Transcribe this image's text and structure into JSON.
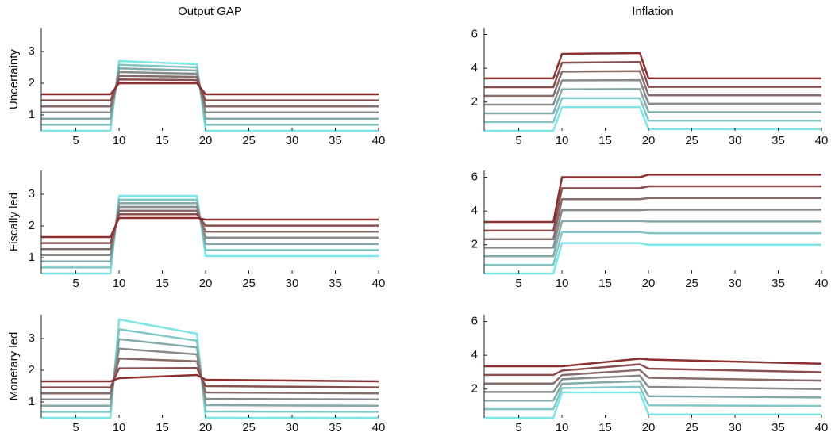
{
  "chart_data": [
    {
      "type": "line",
      "title": "Output GAP",
      "ylabel": "Uncertainty",
      "x": [
        1,
        9,
        10,
        19,
        20,
        40
      ],
      "xlim": [
        1,
        40
      ],
      "xticks": [
        5,
        10,
        15,
        20,
        25,
        30,
        35,
        40
      ],
      "ylim": [
        0.5,
        3.75
      ],
      "yticks": [
        1,
        2,
        3
      ],
      "series": [
        {
          "color": "#7fe5e5",
          "values": [
            0.5,
            0.5,
            2.7,
            2.6,
            0.5,
            0.5
          ]
        },
        {
          "color": "#81c7c7",
          "values": [
            0.69,
            0.69,
            2.58,
            2.5,
            0.69,
            0.69
          ]
        },
        {
          "color": "#83a9a9",
          "values": [
            0.88,
            0.88,
            2.47,
            2.4,
            0.88,
            0.88
          ]
        },
        {
          "color": "#858b8b",
          "values": [
            1.08,
            1.08,
            2.35,
            2.3,
            1.08,
            1.08
          ]
        },
        {
          "color": "#876c6c",
          "values": [
            1.27,
            1.27,
            2.23,
            2.2,
            1.27,
            1.27
          ]
        },
        {
          "color": "#894e4e",
          "values": [
            1.46,
            1.46,
            2.12,
            2.1,
            1.46,
            1.46
          ]
        },
        {
          "color": "#8b3030",
          "values": [
            1.65,
            1.65,
            2.0,
            2.0,
            1.65,
            1.65
          ]
        }
      ]
    },
    {
      "type": "line",
      "title": "Inflation",
      "x": [
        1,
        9,
        10,
        19,
        20,
        40
      ],
      "xlim": [
        1,
        40
      ],
      "xticks": [
        5,
        10,
        15,
        20,
        25,
        30,
        35,
        40
      ],
      "ylim": [
        0.3,
        6.4
      ],
      "yticks": [
        2,
        4,
        6
      ],
      "series": [
        {
          "color": "#7fe5e5",
          "values": [
            0.3,
            0.3,
            1.7,
            1.7,
            0.4,
            0.4
          ]
        },
        {
          "color": "#81c7c7",
          "values": [
            0.82,
            0.82,
            2.23,
            2.23,
            0.9,
            0.9
          ]
        },
        {
          "color": "#83a9a9",
          "values": [
            1.33,
            1.33,
            2.75,
            2.77,
            1.4,
            1.4
          ]
        },
        {
          "color": "#858b8b",
          "values": [
            1.85,
            1.85,
            3.28,
            3.3,
            1.9,
            1.9
          ]
        },
        {
          "color": "#876c6c",
          "values": [
            2.37,
            2.37,
            3.8,
            3.83,
            2.4,
            2.4
          ]
        },
        {
          "color": "#894e4e",
          "values": [
            2.88,
            2.88,
            4.33,
            4.37,
            2.9,
            2.9
          ]
        },
        {
          "color": "#8b3030",
          "values": [
            3.4,
            3.4,
            4.85,
            4.9,
            3.4,
            3.4
          ]
        }
      ]
    },
    {
      "type": "line",
      "ylabel": "Fiscally led",
      "x": [
        1,
        9,
        10,
        19,
        20,
        40
      ],
      "xlim": [
        1,
        40
      ],
      "xticks": [
        5,
        10,
        15,
        20,
        25,
        30,
        35,
        40
      ],
      "ylim": [
        0.5,
        3.75
      ],
      "yticks": [
        1,
        2,
        3
      ],
      "series": [
        {
          "color": "#7fe5e5",
          "values": [
            0.5,
            0.5,
            2.95,
            2.95,
            1.05,
            1.05
          ]
        },
        {
          "color": "#81c7c7",
          "values": [
            0.69,
            0.69,
            2.83,
            2.83,
            1.24,
            1.24
          ]
        },
        {
          "color": "#83a9a9",
          "values": [
            0.88,
            0.88,
            2.72,
            2.72,
            1.43,
            1.43
          ]
        },
        {
          "color": "#858b8b",
          "values": [
            1.08,
            1.08,
            2.6,
            2.6,
            1.63,
            1.63
          ]
        },
        {
          "color": "#876c6c",
          "values": [
            1.27,
            1.27,
            2.48,
            2.48,
            1.82,
            1.82
          ]
        },
        {
          "color": "#894e4e",
          "values": [
            1.46,
            1.46,
            2.37,
            2.37,
            2.01,
            2.01
          ]
        },
        {
          "color": "#8b3030",
          "values": [
            1.65,
            1.65,
            2.25,
            2.25,
            2.2,
            2.2
          ]
        }
      ]
    },
    {
      "type": "line",
      "x": [
        1,
        9,
        10,
        19,
        20,
        40
      ],
      "xlim": [
        1,
        40
      ],
      "xticks": [
        5,
        10,
        15,
        20,
        25,
        30,
        35,
        40
      ],
      "ylim": [
        0.3,
        6.4
      ],
      "yticks": [
        2,
        4,
        6
      ],
      "series": [
        {
          "color": "#7fe5e5",
          "values": [
            0.3,
            0.3,
            2.1,
            2.1,
            2.0,
            2.0
          ]
        },
        {
          "color": "#81c7c7",
          "values": [
            0.81,
            0.81,
            2.75,
            2.75,
            2.69,
            2.69
          ]
        },
        {
          "color": "#83a9a9",
          "values": [
            1.32,
            1.32,
            3.4,
            3.4,
            3.38,
            3.38
          ]
        },
        {
          "color": "#858b8b",
          "values": [
            1.83,
            1.83,
            4.05,
            4.05,
            4.08,
            4.08
          ]
        },
        {
          "color": "#876c6c",
          "values": [
            2.33,
            2.33,
            4.7,
            4.7,
            4.77,
            4.77
          ]
        },
        {
          "color": "#894e4e",
          "values": [
            2.84,
            2.84,
            5.35,
            5.35,
            5.46,
            5.46
          ]
        },
        {
          "color": "#8b3030",
          "values": [
            3.35,
            3.35,
            6.0,
            6.0,
            6.15,
            6.15
          ]
        }
      ]
    },
    {
      "type": "line",
      "ylabel": "Monetary led",
      "x": [
        1,
        9,
        10,
        19,
        20,
        40
      ],
      "xlim": [
        1,
        40
      ],
      "xticks": [
        5,
        10,
        15,
        20,
        25,
        30,
        35,
        40
      ],
      "ylim": [
        0.5,
        3.75
      ],
      "yticks": [
        1,
        2,
        3
      ],
      "series": [
        {
          "color": "#7fe5e5",
          "values": [
            0.5,
            0.5,
            3.6,
            3.15,
            0.5,
            0.5
          ]
        },
        {
          "color": "#81c7c7",
          "values": [
            0.69,
            0.69,
            3.29,
            2.93,
            0.7,
            0.69
          ]
        },
        {
          "color": "#83a9a9",
          "values": [
            0.88,
            0.88,
            2.98,
            2.72,
            0.9,
            0.88
          ]
        },
        {
          "color": "#858b8b",
          "values": [
            1.08,
            1.08,
            2.68,
            2.5,
            1.1,
            1.08
          ]
        },
        {
          "color": "#876c6c",
          "values": [
            1.27,
            1.27,
            2.37,
            2.28,
            1.3,
            1.27
          ]
        },
        {
          "color": "#894e4e",
          "values": [
            1.46,
            1.46,
            2.06,
            2.07,
            1.5,
            1.46
          ]
        },
        {
          "color": "#8b3030",
          "values": [
            1.65,
            1.65,
            1.75,
            1.85,
            1.7,
            1.65
          ]
        }
      ]
    },
    {
      "type": "line",
      "x": [
        1,
        9,
        10,
        19,
        20,
        40
      ],
      "xlim": [
        1,
        40
      ],
      "xticks": [
        5,
        10,
        15,
        20,
        25,
        30,
        35,
        40
      ],
      "ylim": [
        0.3,
        6.4
      ],
      "yticks": [
        2,
        4,
        6
      ],
      "series": [
        {
          "color": "#7fe5e5",
          "values": [
            0.3,
            0.3,
            1.8,
            1.8,
            0.5,
            0.5
          ]
        },
        {
          "color": "#81c7c7",
          "values": [
            0.81,
            0.81,
            2.06,
            2.13,
            1.04,
            1.0
          ]
        },
        {
          "color": "#83a9a9",
          "values": [
            1.32,
            1.32,
            2.32,
            2.47,
            1.58,
            1.5
          ]
        },
        {
          "color": "#858b8b",
          "values": [
            1.83,
            1.83,
            2.58,
            2.8,
            2.13,
            2.0
          ]
        },
        {
          "color": "#876c6c",
          "values": [
            2.33,
            2.33,
            2.83,
            3.13,
            2.67,
            2.5
          ]
        },
        {
          "color": "#894e4e",
          "values": [
            2.84,
            2.84,
            3.09,
            3.47,
            3.21,
            3.0
          ]
        },
        {
          "color": "#8b3030",
          "values": [
            3.35,
            3.35,
            3.35,
            3.8,
            3.75,
            3.5
          ]
        }
      ]
    }
  ]
}
